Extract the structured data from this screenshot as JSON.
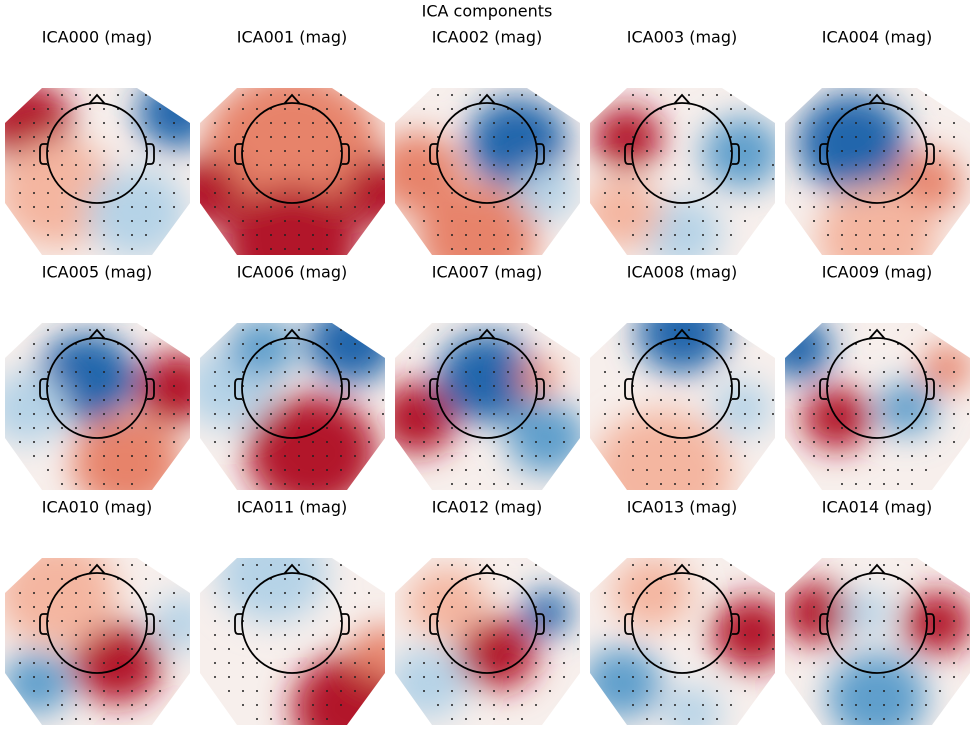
{
  "title": "ICA components",
  "panels": [
    {
      "title": "ICA000 (mag)"
    },
    {
      "title": "ICA001 (mag)"
    },
    {
      "title": "ICA002 (mag)"
    },
    {
      "title": "ICA003 (mag)"
    },
    {
      "title": "ICA004 (mag)"
    },
    {
      "title": "ICA005 (mag)"
    },
    {
      "title": "ICA006 (mag)"
    },
    {
      "title": "ICA007 (mag)"
    },
    {
      "title": "ICA008 (mag)"
    },
    {
      "title": "ICA009 (mag)"
    },
    {
      "title": "ICA010 (mag)"
    },
    {
      "title": "ICA011 (mag)"
    },
    {
      "title": "ICA012 (mag)"
    },
    {
      "title": "ICA013 (mag)"
    },
    {
      "title": "ICA014 (mag)"
    }
  ]
}
